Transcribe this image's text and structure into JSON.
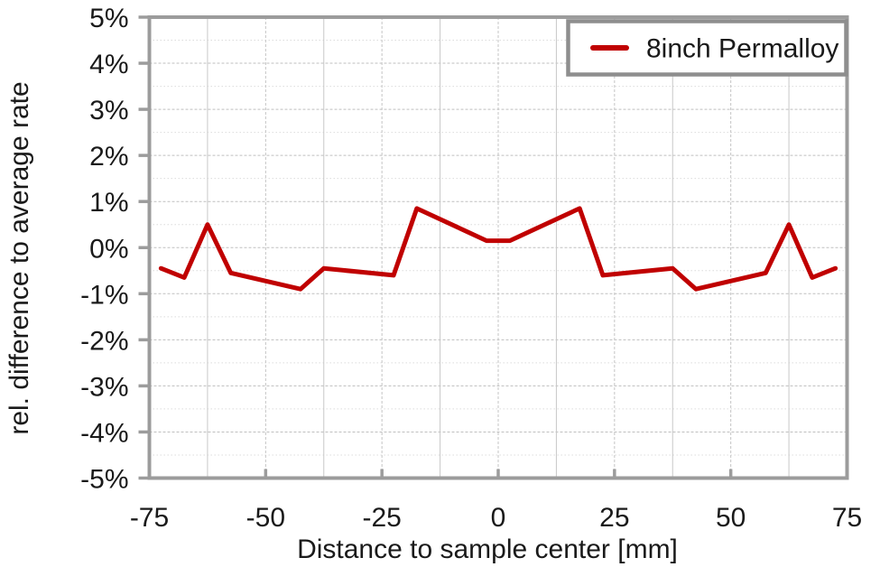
{
  "chart_data": {
    "type": "line",
    "title": "",
    "xlabel": "Distance to sample center [mm]",
    "ylabel": "rel. difference to average rate",
    "xlim": [
      -75,
      75
    ],
    "ylim": [
      -5,
      5
    ],
    "x_tick_values": [
      -75,
      -50,
      -25,
      0,
      25,
      50,
      75
    ],
    "x_tick_labels": [
      "-75",
      "-50",
      "-25",
      "0",
      "25",
      "50",
      "75"
    ],
    "y_tick_values": [
      5,
      4,
      3,
      2,
      1,
      0,
      -1,
      -2,
      -3,
      -4,
      -5
    ],
    "y_tick_labels": [
      "5%",
      "4%",
      "3%",
      "2%",
      "1%",
      "0%",
      "-1%",
      "-2%",
      "-3%",
      "-4%",
      "-5%"
    ],
    "grid": {
      "horizontal_major_step_pct": 1,
      "horizontal_minor_step_pct": 0.5,
      "vertical_step_mm": 12.5,
      "style": "dashed-major-with-minor"
    },
    "legend_position": "top-right",
    "series": [
      {
        "name": "8inch Permalloy",
        "color": "#c00000",
        "x": [
          -72.5,
          -67.5,
          -62.5,
          -57.5,
          -42.5,
          -37.5,
          -22.5,
          -17.5,
          -2.5,
          2.5,
          17.5,
          22.5,
          37.5,
          42.5,
          57.5,
          62.5,
          67.5,
          72.5
        ],
        "y": [
          -0.45,
          -0.65,
          0.5,
          -0.55,
          -0.9,
          -0.45,
          -0.6,
          0.85,
          0.15,
          0.15,
          0.85,
          -0.6,
          -0.45,
          -0.9,
          -0.55,
          0.5,
          -0.65,
          -0.45
        ]
      }
    ]
  },
  "legend": {
    "items": [
      {
        "label": "8inch Permalloy",
        "marker_color": "#c00000"
      }
    ]
  },
  "colors": {
    "series_red": "#c00000",
    "axis_border": "#9c9c9c",
    "tick": "#9c9c9c",
    "grid_major_h": "#bfbfbf",
    "grid_minor_h": "#dcdcdc",
    "grid_vertical_solid": "#c8c8c8",
    "grid_vertical_dashed": "#c4c4c4",
    "text": "#1a1a1a",
    "legend_border": "#8e8e8e",
    "background": "#ffffff"
  }
}
